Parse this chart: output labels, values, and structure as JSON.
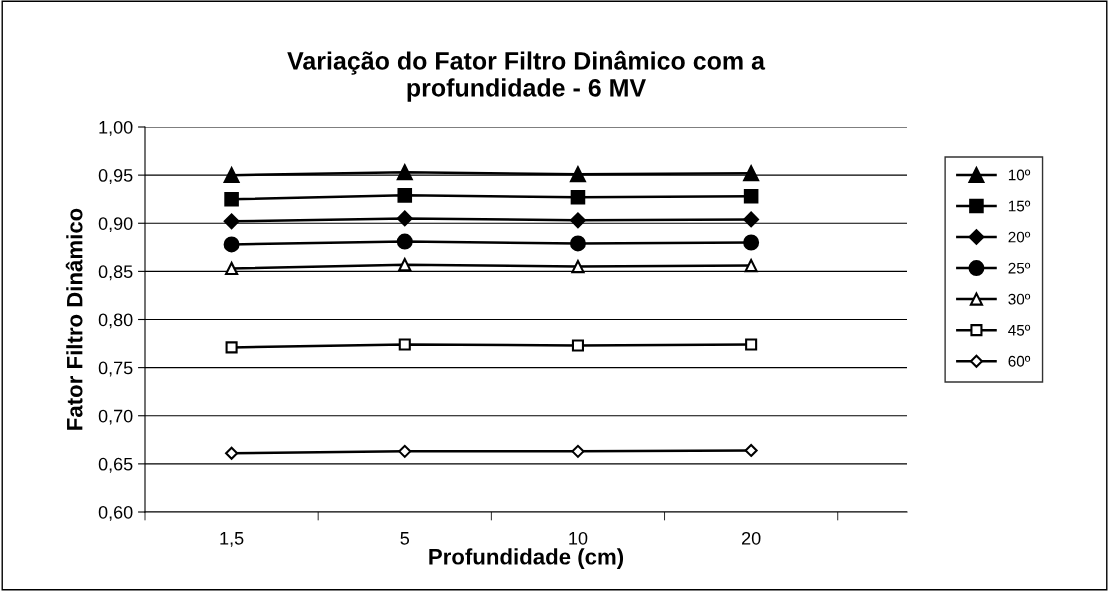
{
  "chart_data": {
    "type": "line",
    "title": "Variação do Fator Filtro Dinâmico com a\nprofundidade - 6 MV",
    "xlabel": "Profundidade (cm)",
    "ylabel": "Fator Filtro Dinâmico",
    "categories": [
      "1,5",
      "5",
      "10",
      "20"
    ],
    "series": [
      {
        "name": "10º",
        "color": "#000000",
        "marker": "triangle",
        "values": [
          0.95,
          0.953,
          0.951,
          0.952
        ]
      },
      {
        "name": "15º",
        "color": "#000000",
        "marker": "square",
        "values": [
          0.925,
          0.929,
          0.927,
          0.928
        ]
      },
      {
        "name": "20º",
        "color": "#000000",
        "marker": "diamond",
        "values": [
          0.902,
          0.905,
          0.903,
          0.904
        ]
      },
      {
        "name": "25º",
        "color": "#000000",
        "marker": "circle",
        "values": [
          0.878,
          0.881,
          0.879,
          0.88
        ]
      },
      {
        "name": "30º",
        "color": "#000000",
        "marker": "triangle",
        "values": [
          0.853,
          0.857,
          0.855,
          0.856
        ]
      },
      {
        "name": "45º",
        "color": "#000000",
        "marker": "square",
        "values": [
          0.771,
          0.774,
          0.773,
          0.774
        ]
      },
      {
        "name": "60º",
        "color": "#000000",
        "marker": "diamond",
        "values": [
          0.661,
          0.663,
          0.663,
          0.664
        ]
      }
    ],
    "ylim": [
      0.6,
      1.0
    ],
    "yticks": [
      {
        "value": 0.6,
        "label": "0,60"
      },
      {
        "value": 0.65,
        "label": "0,65"
      },
      {
        "value": 0.7,
        "label": "0,70"
      },
      {
        "value": 0.75,
        "label": "0,75"
      },
      {
        "value": 0.8,
        "label": "0,80"
      },
      {
        "value": 0.85,
        "label": "0,85"
      },
      {
        "value": 0.9,
        "label": "0,90"
      },
      {
        "value": 0.95,
        "label": "0,95"
      },
      {
        "value": 1.0,
        "label": "1,00"
      }
    ],
    "grid": "y",
    "legend": "right",
    "line_style": "solid"
  }
}
